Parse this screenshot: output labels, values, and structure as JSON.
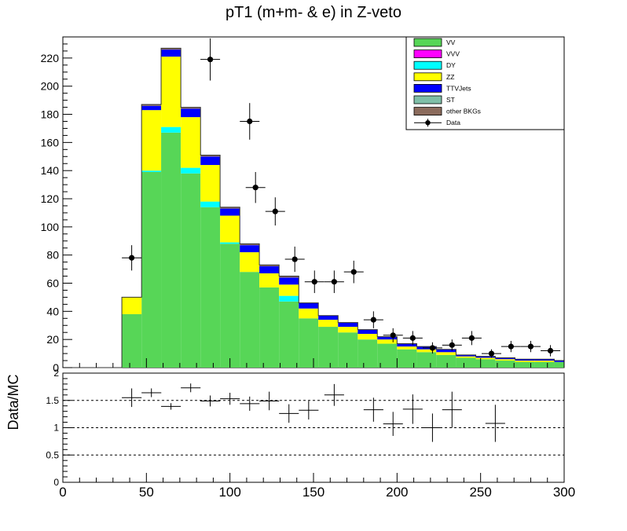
{
  "chart_data": [
    {
      "type": "stacked-histogram",
      "title": "pT1 (m+m- & e) in Z-veto",
      "xlim": [
        0,
        300
      ],
      "ylim": [
        0,
        235
      ],
      "y_ticks": [
        0,
        20,
        40,
        60,
        80,
        100,
        120,
        140,
        160,
        180,
        200,
        220
      ],
      "x_ticks": [
        0,
        50,
        100,
        150,
        200,
        250,
        300
      ],
      "bin_edges": [
        0,
        11.8,
        23.5,
        35.3,
        47.1,
        58.8,
        70.6,
        82.4,
        94.1,
        105.9,
        117.6,
        129.4,
        141.2,
        152.9,
        164.7,
        176.5,
        188.2,
        200,
        211.8,
        223.5,
        235.3,
        247.1,
        258.8,
        270.6,
        282.4,
        294.1,
        300
      ],
      "legend_position": "top-right",
      "series": [
        {
          "name": "VV",
          "color": "#57d657",
          "values": [
            0,
            0,
            0,
            38,
            139,
            167,
            138,
            114,
            88,
            68,
            57,
            47,
            35,
            29,
            25,
            20,
            17,
            13,
            11,
            9,
            7,
            6,
            5,
            4,
            4,
            4
          ]
        },
        {
          "name": "VVV",
          "color": "#ff00ff",
          "values": [
            0,
            0,
            0,
            0,
            0,
            0,
            0,
            0,
            0,
            0,
            0,
            0,
            0,
            0,
            0,
            0,
            0,
            0,
            0,
            0,
            0,
            0,
            0,
            0,
            0,
            0
          ]
        },
        {
          "name": "DY",
          "color": "#00ffff",
          "values": [
            0,
            0,
            0,
            0,
            1,
            4,
            4,
            4,
            1,
            0,
            0,
            4,
            0,
            0,
            0,
            0,
            0,
            0,
            0,
            0,
            0,
            0,
            0,
            0,
            0,
            0
          ]
        },
        {
          "name": "ZZ",
          "color": "#ffff00",
          "values": [
            0,
            0,
            0,
            12,
            43,
            50,
            36,
            26,
            19,
            14,
            10,
            8,
            7,
            5,
            4,
            4,
            3,
            2,
            2,
            2,
            1,
            1,
            1,
            1,
            1,
            0
          ]
        },
        {
          "name": "TTVJets",
          "color": "#0000ff",
          "values": [
            0,
            0,
            0,
            0,
            3,
            5,
            6,
            6,
            5,
            5,
            5,
            5,
            4,
            3,
            3,
            3,
            2,
            2,
            2,
            2,
            1,
            1,
            1,
            1,
            1,
            1
          ]
        },
        {
          "name": "ST",
          "color": "#7fbfa8",
          "values": [
            0,
            0,
            0,
            0,
            0,
            0,
            0,
            0,
            0,
            0,
            0,
            0,
            0,
            0,
            0,
            0,
            0,
            0,
            0,
            0,
            0,
            0,
            0,
            0,
            0,
            0
          ]
        },
        {
          "name": "other BKGs",
          "color": "#8b6b5c",
          "values": [
            0,
            0,
            0,
            0,
            1,
            1,
            1,
            1,
            1,
            1,
            1,
            1,
            0,
            0,
            0,
            0,
            0,
            0,
            0,
            0,
            0,
            0,
            0,
            0,
            0,
            0
          ]
        }
      ],
      "data_series": {
        "name": "Data",
        "color": "#000000",
        "points": [
          {
            "x": 41.2,
            "y": 78,
            "err": 9
          },
          {
            "x": 88.2,
            "y": 219,
            "err": 15
          },
          {
            "x": 111.8,
            "y": 175,
            "err": 13
          },
          {
            "x": 115.3,
            "y": 128,
            "err": 11
          },
          {
            "x": 127.1,
            "y": 111,
            "err": 10
          },
          {
            "x": 138.8,
            "y": 77,
            "err": 9
          },
          {
            "x": 150.6,
            "y": 61,
            "err": 8
          },
          {
            "x": 162.4,
            "y": 61,
            "err": 8
          },
          {
            "x": 174.1,
            "y": 68,
            "err": 8
          },
          {
            "x": 185.9,
            "y": 34,
            "err": 6
          },
          {
            "x": 197.6,
            "y": 23,
            "err": 5
          },
          {
            "x": 209.4,
            "y": 21,
            "err": 5
          },
          {
            "x": 221.2,
            "y": 14,
            "err": 4
          },
          {
            "x": 232.9,
            "y": 16,
            "err": 4
          },
          {
            "x": 244.7,
            "y": 21,
            "err": 5
          },
          {
            "x": 256.5,
            "y": 10,
            "err": 3
          },
          {
            "x": 268.2,
            "y": 15,
            "err": 4
          },
          {
            "x": 280,
            "y": 15,
            "err": 4
          },
          {
            "x": 291.8,
            "y": 12,
            "err": 4
          }
        ]
      }
    },
    {
      "type": "scatter",
      "ylabel": "Data/MC",
      "xlim": [
        0,
        300
      ],
      "ylim": [
        0,
        2
      ],
      "y_ticks": [
        "0",
        "0.5",
        "1",
        "1.5",
        "2"
      ],
      "x_ticks": [
        "0",
        "50",
        "100",
        "150",
        "200",
        "250",
        "300"
      ],
      "reference_lines": [
        0.5,
        1,
        1.5
      ],
      "points": [
        {
          "x": 41.2,
          "y": 1.55,
          "err": 0.17,
          "xerr": 5.9
        },
        {
          "x": 53,
          "y": 1.64,
          "err": 0.08,
          "xerr": 5.9
        },
        {
          "x": 64.7,
          "y": 1.39,
          "err": 0.06,
          "xerr": 5.9
        },
        {
          "x": 76.5,
          "y": 1.73,
          "err": 0.08,
          "xerr": 5.9
        },
        {
          "x": 88.2,
          "y": 1.49,
          "err": 0.1,
          "xerr": 5.9
        },
        {
          "x": 100,
          "y": 1.53,
          "err": 0.11,
          "xerr": 5.9
        },
        {
          "x": 111.8,
          "y": 1.44,
          "err": 0.13,
          "xerr": 5.9
        },
        {
          "x": 123.5,
          "y": 1.49,
          "err": 0.17,
          "xerr": 5.9
        },
        {
          "x": 135.3,
          "y": 1.26,
          "err": 0.17,
          "xerr": 5.9
        },
        {
          "x": 147.1,
          "y": 1.32,
          "err": 0.17,
          "xerr": 5.9
        },
        {
          "x": 162.4,
          "y": 1.6,
          "err": 0.2,
          "xerr": 5.9
        },
        {
          "x": 185.9,
          "y": 1.33,
          "err": 0.22,
          "xerr": 5.9
        },
        {
          "x": 197.6,
          "y": 1.07,
          "err": 0.22,
          "xerr": 5.9
        },
        {
          "x": 209.4,
          "y": 1.34,
          "err": 0.27,
          "xerr": 5.9
        },
        {
          "x": 221.2,
          "y": 1.0,
          "err": 0.26,
          "xerr": 5.9
        },
        {
          "x": 232.9,
          "y": 1.33,
          "err": 0.33,
          "xerr": 5.9
        },
        {
          "x": 258.8,
          "y": 1.08,
          "err": 0.34,
          "xerr": 5.9
        }
      ]
    }
  ]
}
